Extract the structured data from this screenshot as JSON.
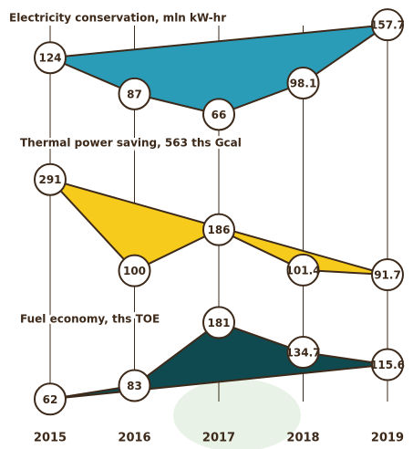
{
  "chart_data": {
    "type": "area",
    "categories": [
      "2015",
      "2016",
      "2017",
      "2018",
      "2019"
    ],
    "series": [
      {
        "name": "Electricity conservation, mln kW-hr",
        "color": "#2a9cb8",
        "values": [
          124,
          87,
          66,
          98.1,
          157.7
        ],
        "ylim": [
          0,
          170
        ]
      },
      {
        "name": "Thermal power saving, 563 ths Gcal",
        "color": "#f7cb1c",
        "values": [
          291,
          100,
          186,
          101.4,
          91.7
        ],
        "ylim": [
          0,
          300
        ]
      },
      {
        "name": "Fuel economy, ths TOE",
        "color": "#0f4a50",
        "values": [
          62,
          83,
          181,
          134.7,
          115.6
        ],
        "ylim": [
          0,
          200
        ]
      }
    ]
  }
}
